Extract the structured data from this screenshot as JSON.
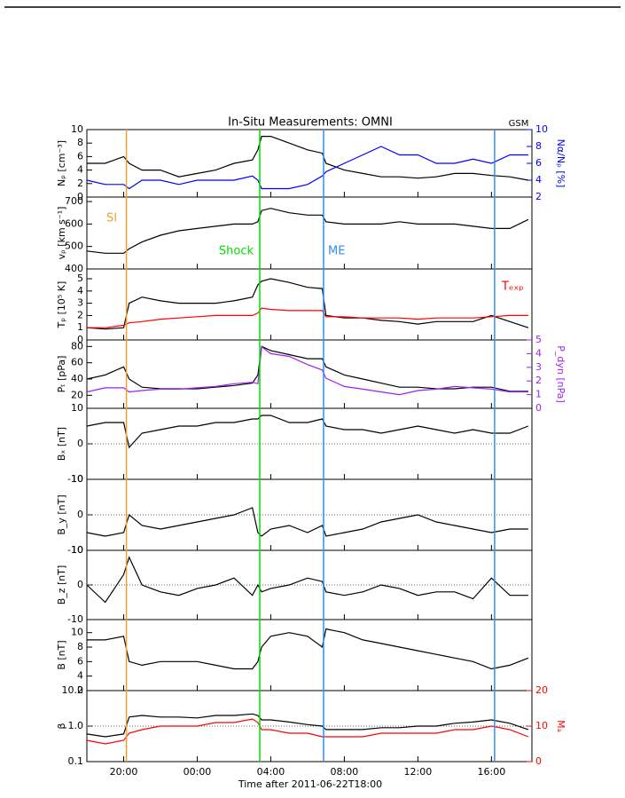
{
  "title": "In-Situ Measurements: OMNI",
  "corner_label": "GSM",
  "time_axis": {
    "label": "Time after 2011-06-22T18:00",
    "xlim": [
      0,
      24.2
    ],
    "xticks": [
      {
        "value": 2,
        "label": "20:00"
      },
      {
        "value": 6,
        "label": "00:00"
      },
      {
        "value": 10,
        "label": "04:00"
      },
      {
        "value": 14,
        "label": "08:00"
      },
      {
        "value": 18,
        "label": "12:00"
      },
      {
        "value": 22,
        "label": "16:00"
      }
    ]
  },
  "events": [
    {
      "x": 2.15,
      "color": "#f0a030",
      "label": "SI"
    },
    {
      "x": 9.4,
      "color": "#00dd00",
      "label": "Shock"
    },
    {
      "x": 12.87,
      "color": "#3090f0",
      "label": "ME"
    },
    {
      "x": 22.17,
      "color": "#3090f0"
    }
  ],
  "chart_data": [
    {
      "type": "line",
      "ylabel": "Nₚ [cm⁻³]",
      "ylim": [
        0,
        10
      ],
      "yticks": [
        0,
        2,
        4,
        6,
        8,
        10
      ],
      "y2label": "Nα/Nₚ [%]",
      "y2lim": [
        2,
        10
      ],
      "y2ticks": [
        2,
        4,
        6,
        8,
        10
      ],
      "y2color": "#0000ff",
      "x": [
        0,
        1,
        2,
        2.3,
        3,
        4,
        5,
        6,
        7,
        8,
        9,
        9.3,
        9.5,
        10,
        11,
        12,
        12.8,
        13,
        14,
        15,
        16,
        17,
        18,
        19,
        20,
        21,
        22,
        23,
        24
      ],
      "series": [
        {
          "color": "#000000",
          "values": [
            5,
            5,
            6,
            5,
            4,
            4,
            3,
            3.5,
            4,
            5,
            5.5,
            7,
            9,
            9,
            8,
            7,
            6.5,
            5,
            4,
            3.5,
            3,
            3,
            2.8,
            3,
            3.5,
            3.5,
            3.2,
            3,
            2.5
          ]
        },
        {
          "color": "#0000ff",
          "axis": "y2",
          "values": [
            4,
            3.5,
            3.5,
            3,
            4,
            4,
            3.5,
            4,
            4,
            4,
            4.5,
            4,
            3,
            3,
            3,
            3.5,
            4.5,
            5,
            6,
            7,
            8,
            7,
            7,
            6,
            6,
            6.5,
            6,
            7,
            7
          ]
        }
      ]
    },
    {
      "type": "line",
      "ylabel": "vₚ [km s⁻¹]",
      "ylim": [
        400,
        720
      ],
      "yticks": [
        400,
        500,
        600,
        700
      ],
      "x": [
        0,
        1,
        2,
        2.3,
        3,
        4,
        5,
        6,
        7,
        8,
        9,
        9.3,
        9.5,
        10,
        11,
        12,
        12.8,
        13,
        14,
        15,
        16,
        17,
        18,
        19,
        20,
        21,
        22,
        23,
        24
      ],
      "series": [
        {
          "color": "#000000",
          "values": [
            480,
            470,
            470,
            490,
            520,
            550,
            570,
            580,
            590,
            600,
            600,
            610,
            660,
            670,
            650,
            640,
            640,
            610,
            600,
            600,
            600,
            610,
            600,
            600,
            600,
            590,
            580,
            580,
            620
          ]
        }
      ]
    },
    {
      "type": "line",
      "ylabel": "Tₚ [10⁵ K]",
      "ylim": [
        0,
        5.8
      ],
      "yticks": [
        0,
        1,
        2,
        3,
        4,
        5
      ],
      "x": [
        0,
        1,
        2,
        2.3,
        3,
        4,
        5,
        6,
        7,
        8,
        9,
        9.3,
        9.5,
        10,
        11,
        12,
        12.8,
        13,
        14,
        15,
        16,
        17,
        18,
        19,
        20,
        21,
        22,
        23,
        24
      ],
      "series": [
        {
          "color": "#000000",
          "values": [
            1,
            0.9,
            1,
            3,
            3.5,
            3.2,
            3,
            3,
            3,
            3.2,
            3.5,
            4.5,
            4.8,
            5,
            4.7,
            4.3,
            4.2,
            2,
            1.8,
            1.8,
            1.6,
            1.5,
            1.3,
            1.5,
            1.5,
            1.5,
            2,
            1.5,
            1
          ]
        },
        {
          "name": "Tₑₓₚ",
          "color": "#ff0000",
          "values": [
            1,
            1,
            1.2,
            1.4,
            1.5,
            1.7,
            1.8,
            1.9,
            2,
            2,
            2,
            2.2,
            2.6,
            2.5,
            2.4,
            2.4,
            2.4,
            1.9,
            1.9,
            1.8,
            1.8,
            1.8,
            1.7,
            1.8,
            1.8,
            1.8,
            1.9,
            2,
            2
          ]
        }
      ]
    },
    {
      "type": "line",
      "ylabel": "Pₜ [pPa]",
      "ylim": [
        4,
        88
      ],
      "yticks": [
        20,
        40,
        60,
        80
      ],
      "y2label": "P_dyn [nPa]",
      "y2lim": [
        0,
        5
      ],
      "y2ticks": [
        0,
        1,
        2,
        3,
        4,
        5
      ],
      "y2color": "#a020f0",
      "x": [
        0,
        1,
        2,
        2.3,
        3,
        4,
        5,
        6,
        7,
        8,
        9,
        9.3,
        9.5,
        10,
        11,
        12,
        12.8,
        13,
        14,
        15,
        16,
        17,
        18,
        19,
        20,
        21,
        22,
        23,
        24
      ],
      "series": [
        {
          "color": "#000000",
          "values": [
            40,
            45,
            55,
            40,
            30,
            28,
            28,
            28,
            30,
            32,
            35,
            45,
            80,
            75,
            70,
            65,
            65,
            55,
            45,
            40,
            35,
            30,
            30,
            28,
            28,
            30,
            30,
            25,
            25
          ]
        },
        {
          "color": "#a020f0",
          "axis": "y2",
          "values": [
            1.2,
            1.5,
            1.5,
            1.2,
            1.3,
            1.4,
            1.4,
            1.5,
            1.6,
            1.8,
            1.9,
            1.8,
            4.5,
            4,
            3.8,
            3.2,
            2.8,
            2.2,
            1.6,
            1.4,
            1.2,
            1,
            1.3,
            1.4,
            1.6,
            1.5,
            1.4,
            1.2,
            1.2
          ]
        }
      ]
    },
    {
      "type": "line",
      "ylabel": "Bₓ [nT]",
      "ylim": [
        -10,
        10
      ],
      "yticks": [
        -10,
        0,
        10
      ],
      "zero_line": true,
      "x": [
        0,
        1,
        2,
        2.3,
        3,
        4,
        5,
        6,
        7,
        8,
        9,
        9.3,
        9.5,
        10,
        11,
        12,
        12.8,
        13,
        14,
        15,
        16,
        17,
        18,
        19,
        20,
        21,
        22,
        23,
        24
      ],
      "series": [
        {
          "color": "#000000",
          "values": [
            5,
            6,
            6,
            -1,
            3,
            4,
            5,
            5,
            6,
            6,
            7,
            7,
            8,
            8,
            6,
            6,
            7,
            5,
            4,
            4,
            3,
            4,
            5,
            4,
            3,
            4,
            3,
            3,
            5
          ]
        }
      ]
    },
    {
      "type": "line",
      "ylabel": "B_y [nT]",
      "ylim": [
        -10,
        10
      ],
      "yticks": [
        -10,
        0,
        10
      ],
      "zero_line": true,
      "x": [
        0,
        1,
        2,
        2.3,
        3,
        4,
        5,
        6,
        7,
        8,
        9,
        9.3,
        9.5,
        10,
        11,
        12,
        12.8,
        13,
        14,
        15,
        16,
        17,
        18,
        19,
        20,
        21,
        22,
        23,
        24
      ],
      "series": [
        {
          "color": "#000000",
          "values": [
            -5,
            -6,
            -5,
            0,
            -3,
            -4,
            -3,
            -2,
            -1,
            0,
            2,
            -5,
            -6,
            -4,
            -3,
            -5,
            -3,
            -6,
            -5,
            -4,
            -2,
            -1,
            0,
            -2,
            -3,
            -4,
            -5,
            -4,
            -4
          ]
        }
      ]
    },
    {
      "type": "line",
      "ylabel": "B_z [nT]",
      "ylim": [
        -10,
        10
      ],
      "yticks": [
        -10,
        0,
        10
      ],
      "zero_line": true,
      "x": [
        0,
        1,
        2,
        2.3,
        3,
        4,
        5,
        6,
        7,
        8,
        9,
        9.3,
        9.5,
        10,
        11,
        12,
        12.8,
        13,
        14,
        15,
        16,
        17,
        18,
        19,
        20,
        21,
        22,
        23,
        24
      ],
      "series": [
        {
          "color": "#000000",
          "values": [
            0,
            -5,
            3,
            8,
            0,
            -2,
            -3,
            -1,
            0,
            2,
            -3,
            0,
            -2,
            -1,
            0,
            2,
            1,
            -2,
            -3,
            -2,
            0,
            -1,
            -3,
            -2,
            -2,
            -4,
            2,
            -3,
            -3
          ]
        }
      ]
    },
    {
      "type": "line",
      "ylabel": "B [nT]",
      "ylim": [
        2,
        11.8
      ],
      "yticks": [
        2,
        4,
        6,
        8,
        10
      ],
      "x": [
        0,
        1,
        2,
        2.3,
        3,
        4,
        5,
        6,
        7,
        8,
        9,
        9.3,
        9.5,
        10,
        11,
        12,
        12.8,
        13,
        14,
        15,
        16,
        17,
        18,
        19,
        20,
        21,
        22,
        23,
        24
      ],
      "series": [
        {
          "color": "#000000",
          "values": [
            9,
            9,
            9.5,
            6,
            5.5,
            6,
            6,
            6,
            5.5,
            5,
            5,
            6,
            8,
            9.5,
            10,
            9.5,
            8,
            10.5,
            10,
            9,
            8.5,
            8,
            7.5,
            7,
            6.5,
            6,
            5,
            5.5,
            6.5
          ]
        }
      ]
    },
    {
      "type": "line",
      "ylabel": "β",
      "log_y": true,
      "ylim": [
        0.1,
        10
      ],
      "yticks": [
        {
          "value": 0.1,
          "label": "0.1"
        },
        {
          "value": 1,
          "label": "1.0"
        },
        {
          "value": 10,
          "label": "10.0"
        }
      ],
      "one_line": true,
      "y2label": "Mₐ",
      "y2lim": [
        0,
        20
      ],
      "y2ticks": [
        0,
        10,
        20
      ],
      "y2color": "#ff0000",
      "x": [
        0,
        1,
        2,
        2.3,
        3,
        4,
        5,
        6,
        7,
        8,
        9,
        9.3,
        9.5,
        10,
        11,
        12,
        12.8,
        13,
        14,
        15,
        16,
        17,
        18,
        19,
        20,
        21,
        22,
        23,
        24
      ],
      "series": [
        {
          "color": "#000000",
          "values": [
            0.6,
            0.5,
            0.6,
            1.8,
            2,
            1.8,
            1.8,
            1.7,
            2,
            2,
            2.2,
            2,
            1.5,
            1.5,
            1.3,
            1.1,
            1,
            0.8,
            0.8,
            0.8,
            0.9,
            0.9,
            1,
            1,
            1.2,
            1.3,
            1.5,
            1.2,
            0.8
          ]
        },
        {
          "color": "#ff0000",
          "axis": "y2",
          "values": [
            6,
            5,
            6,
            8,
            9,
            10,
            10,
            10,
            11,
            11,
            12,
            11,
            9,
            9,
            8,
            8,
            7,
            7,
            7,
            7,
            8,
            8,
            8,
            8,
            9,
            9,
            10,
            9,
            7
          ]
        }
      ]
    }
  ]
}
